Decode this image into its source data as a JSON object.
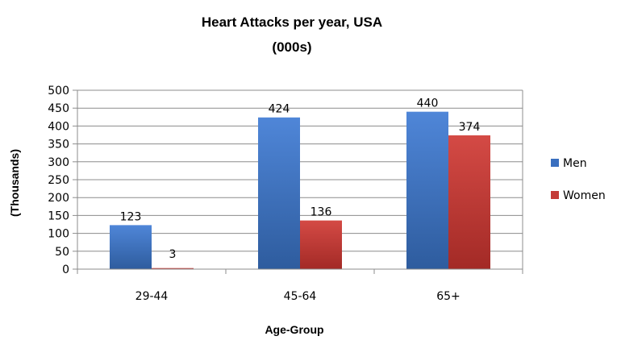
{
  "chart_data": {
    "type": "bar",
    "title": "Heart Attacks per year, USA",
    "subtitle": "(000s)",
    "xlabel": "Age-Group",
    "ylabel": "(Thousands)",
    "categories": [
      "29-44",
      "45-64",
      "65+"
    ],
    "series": [
      {
        "name": "Men",
        "values": [
          123,
          424,
          440
        ],
        "color": "#3A6FBF"
      },
      {
        "name": "Women",
        "values": [
          3,
          136,
          374
        ],
        "color": "#C43A36"
      }
    ],
    "ylim": [
      0,
      500
    ],
    "yticks": [
      "0",
      "50",
      "100",
      "150",
      "200",
      "250",
      "300",
      "350",
      "400",
      "450",
      "500"
    ],
    "grid": true,
    "legend_position": "right"
  }
}
